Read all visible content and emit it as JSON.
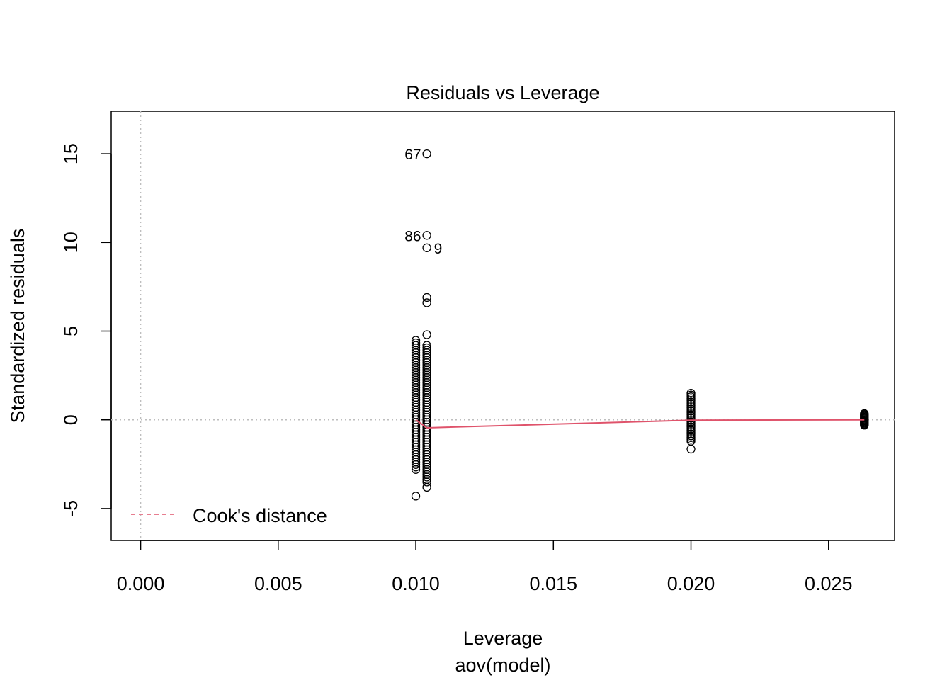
{
  "chart_data": {
    "type": "scatter",
    "title": "Residuals vs Leverage",
    "xlabel": "Leverage",
    "subtitle": "aov(model)",
    "ylabel": "Standardized residuals",
    "xlim": [
      -0.00107,
      0.0274
    ],
    "ylim": [
      -6.8,
      17.4
    ],
    "x_ticks": [
      "0.000",
      "0.005",
      "0.010",
      "0.015",
      "0.020",
      "0.025"
    ],
    "y_ticks": [
      "-5",
      "0",
      "5",
      "10",
      "15"
    ],
    "reference_lines": {
      "x": 0,
      "y": 0,
      "style": "dotted grey"
    },
    "legend": {
      "position": "bottom-left",
      "entries": [
        {
          "label": "Cook's distance",
          "color": "#DF536B",
          "style": "dashed"
        }
      ]
    },
    "labeled_points": [
      {
        "label": "67",
        "x": 0.0104,
        "y": 15.0
      },
      {
        "label": "86",
        "x": 0.0104,
        "y": 10.4
      },
      {
        "label": "9",
        "x": 0.0104,
        "y": 9.7
      }
    ],
    "columns": [
      {
        "x": 0.01,
        "y_min": -2.8,
        "y_max": 4.5,
        "step": 0.14,
        "extra": [
          -4.3
        ]
      },
      {
        "x": 0.0104,
        "y_min": -3.5,
        "y_max": 4.2,
        "step": 0.14,
        "extra": [
          -3.8,
          4.8,
          6.6,
          6.9
        ]
      },
      {
        "x": 0.02,
        "y_min": -1.2,
        "y_max": 1.55,
        "step": 0.1,
        "extra": [
          -1.65
        ]
      },
      {
        "x": 0.0263,
        "y_min": -0.3,
        "y_max": 0.35,
        "step": 0.05,
        "extra": []
      }
    ],
    "smooth_line": {
      "color": "#DF536B",
      "x": [
        0.01,
        0.0104,
        0.02,
        0.0263
      ],
      "y": [
        0.0,
        -0.45,
        -0.02,
        0.0
      ]
    }
  }
}
